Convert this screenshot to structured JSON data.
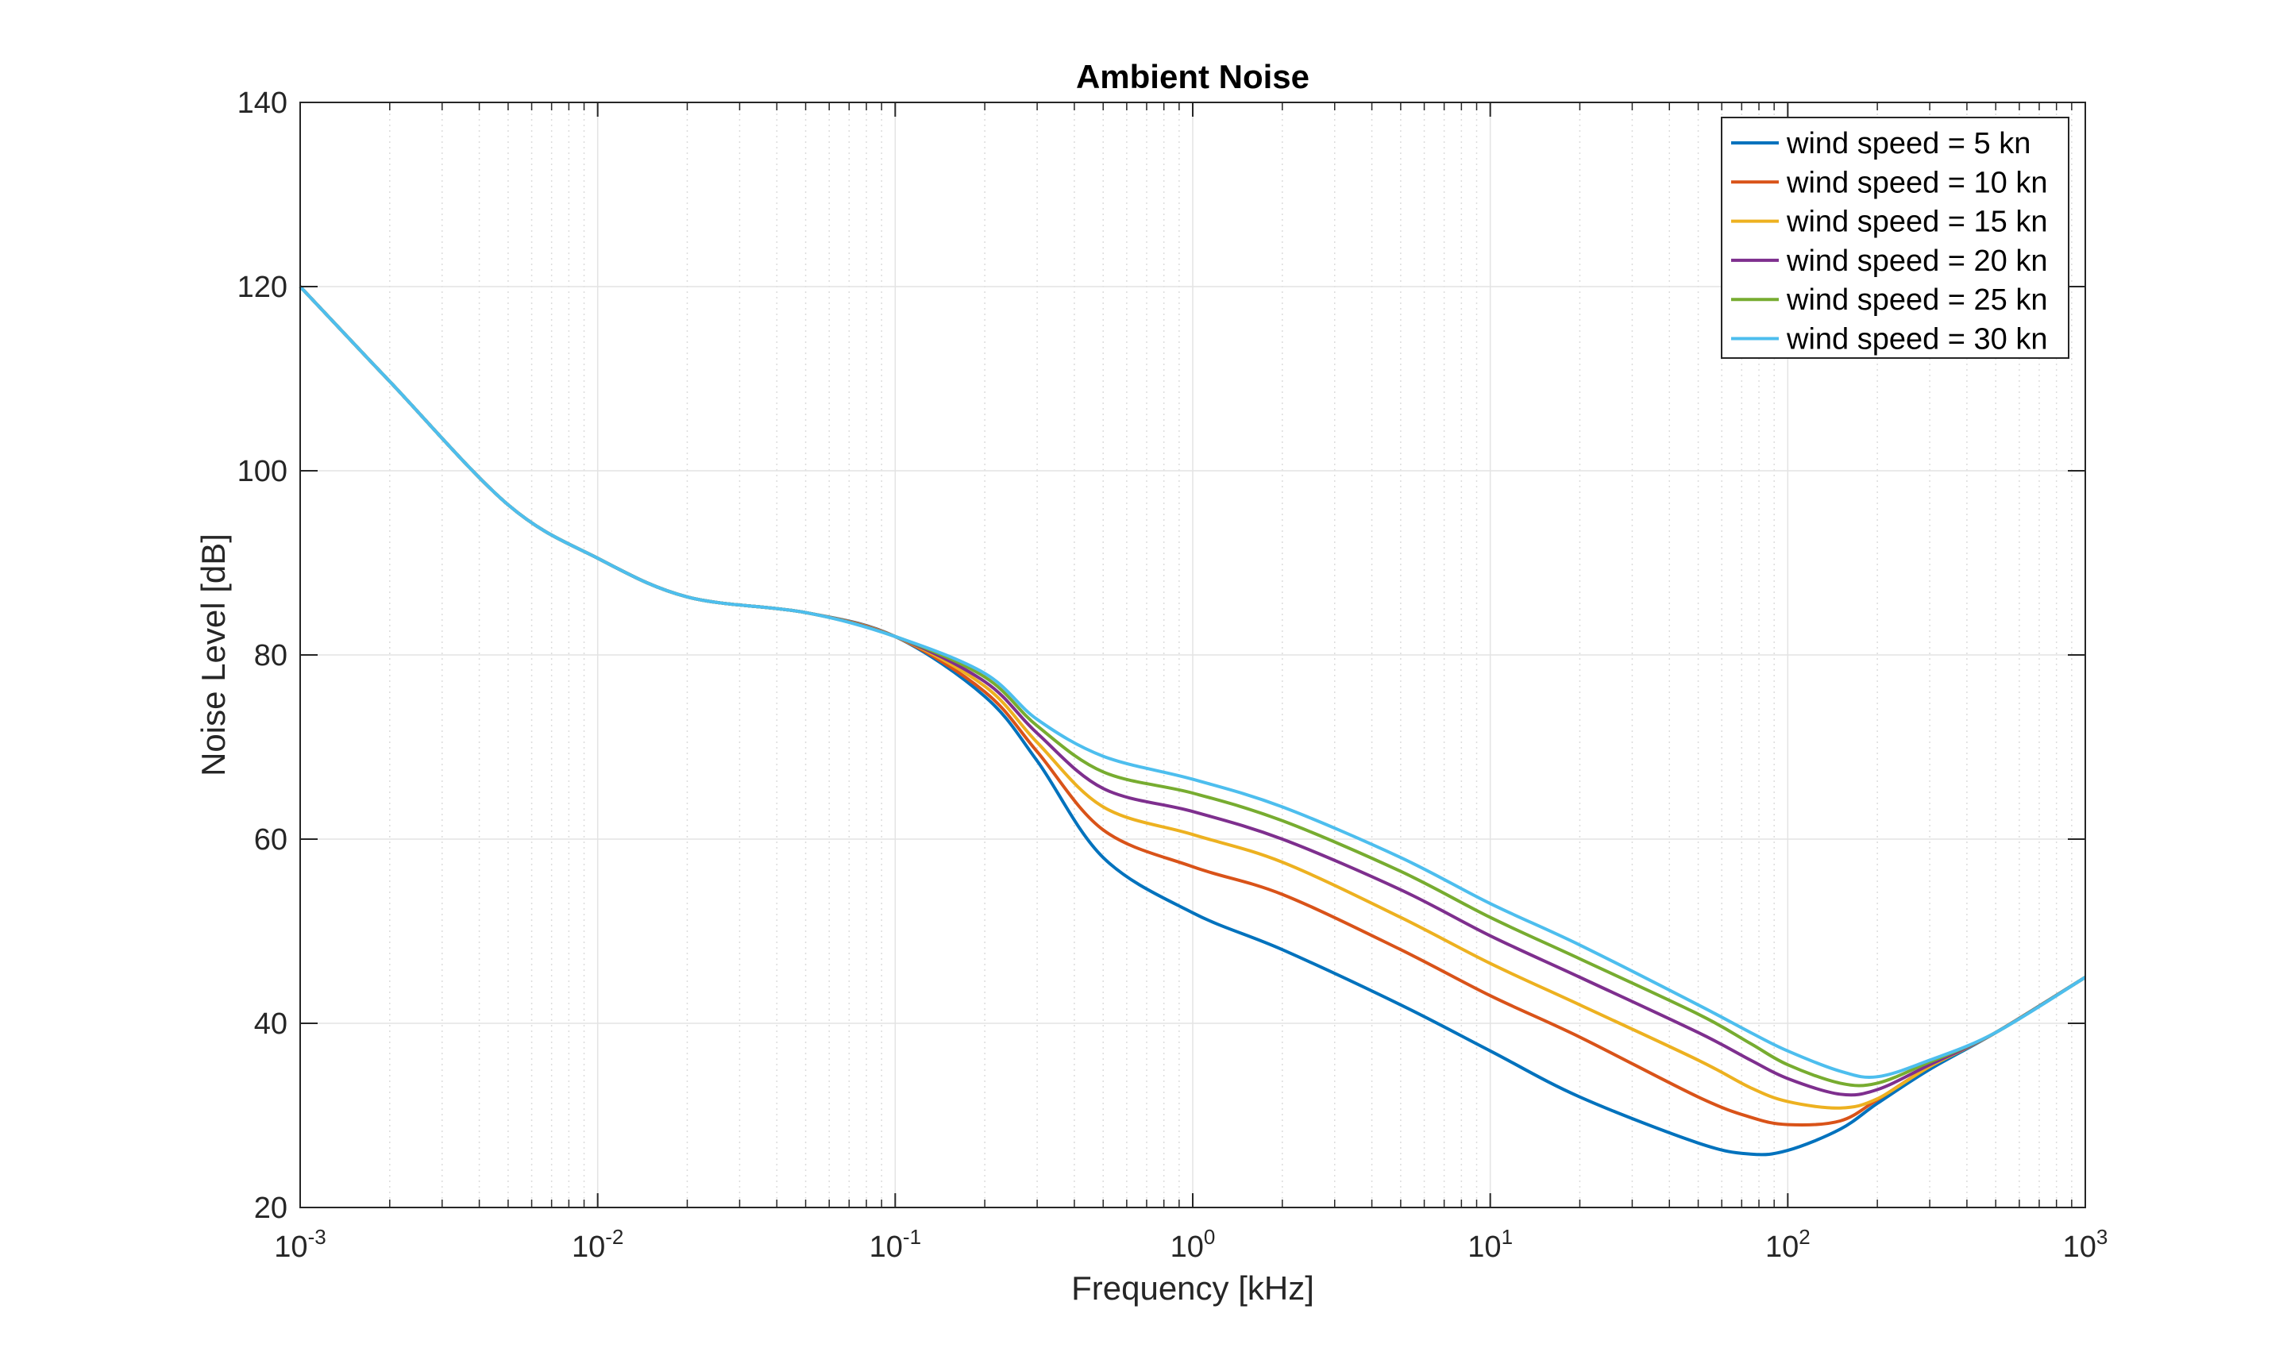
{
  "chart_data": {
    "type": "line",
    "title": "Ambient Noise",
    "xlabel": "Frequency [kHz]",
    "ylabel": "Noise Level [dB]",
    "xscale": "log",
    "xlim": [
      0.001,
      1000
    ],
    "ylim": [
      20,
      140
    ],
    "grid": true,
    "minor_grid_x": true,
    "legend_position": "top-right",
    "x_ticks": [
      {
        "base": "10",
        "exp": "-3"
      },
      {
        "base": "10",
        "exp": "-2"
      },
      {
        "base": "10",
        "exp": "-1"
      },
      {
        "base": "10",
        "exp": "0"
      },
      {
        "base": "10",
        "exp": "1"
      },
      {
        "base": "10",
        "exp": "2"
      },
      {
        "base": "10",
        "exp": "3"
      }
    ],
    "y_ticks": [
      "20",
      "40",
      "60",
      "80",
      "100",
      "120",
      "140"
    ],
    "x": [
      0.001,
      0.002,
      0.005,
      0.01,
      0.02,
      0.05,
      0.1,
      0.2,
      0.3,
      0.5,
      1,
      2,
      5,
      10,
      20,
      50,
      75,
      100,
      150,
      200,
      300,
      500,
      1000
    ],
    "series": [
      {
        "name": "wind speed = 5 kn",
        "color": "#0072BD",
        "values": [
          120,
          109.7,
          96.3,
          90.5,
          86.3,
          84.6,
          82,
          75.5,
          68.5,
          58,
          52,
          48,
          42,
          37,
          32,
          27,
          25.8,
          26.2,
          28.5,
          31.3,
          35,
          39,
          45
        ]
      },
      {
        "name": "wind speed = 10 kn",
        "color": "#D95319",
        "values": [
          120,
          109.7,
          96.3,
          90.5,
          86.3,
          84.6,
          82,
          76,
          69.5,
          61,
          57,
          54,
          48,
          43,
          38.5,
          32,
          29.8,
          29,
          29.4,
          31.7,
          35.3,
          39,
          45
        ]
      },
      {
        "name": "wind speed = 15 kn",
        "color": "#EDB120",
        "values": [
          120,
          109.7,
          96.3,
          90.5,
          86.3,
          84.6,
          82,
          76.6,
          70.5,
          63.5,
          60.5,
          57.5,
          51.5,
          46.5,
          42,
          36,
          33,
          31.5,
          30.8,
          31.8,
          35.3,
          39,
          45
        ]
      },
      {
        "name": "wind speed = 20 kn",
        "color": "#7E2F8E",
        "values": [
          120,
          109.7,
          96.3,
          90.5,
          86.3,
          84.6,
          82,
          77.1,
          71.5,
          65.5,
          63,
          60,
          54.5,
          49.5,
          45,
          39,
          36,
          34,
          32.3,
          32.8,
          35.5,
          39,
          45
        ]
      },
      {
        "name": "wind speed = 25 kn",
        "color": "#77AC30",
        "values": [
          120,
          109.7,
          96.3,
          90.5,
          86.3,
          84.6,
          82,
          77.6,
          72.3,
          67.3,
          65,
          62,
          56.5,
          51.5,
          47,
          41,
          37.8,
          35.5,
          33.5,
          33.5,
          35.8,
          39,
          45
        ]
      },
      {
        "name": "wind speed = 30 kn",
        "color": "#4DBEEE",
        "values": [
          120,
          109.7,
          96.3,
          90.5,
          86.3,
          84.6,
          82,
          78,
          73,
          69,
          66.5,
          63.5,
          58,
          53,
          48.5,
          42,
          39,
          37,
          34.8,
          34.2,
          36,
          39,
          45
        ]
      }
    ]
  }
}
